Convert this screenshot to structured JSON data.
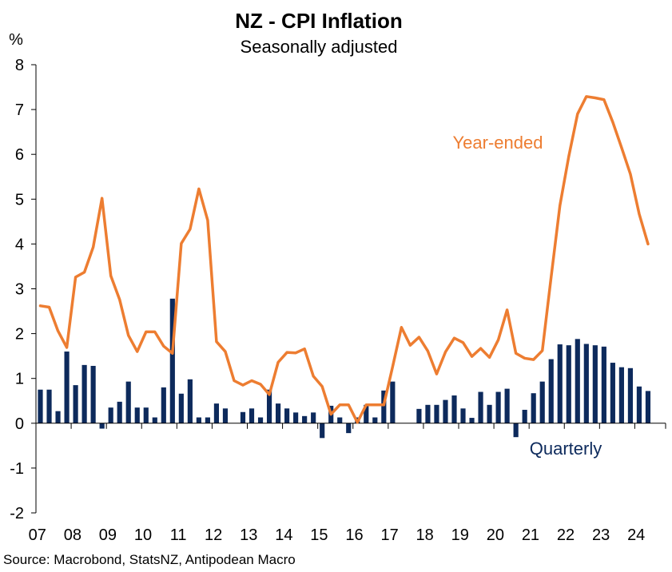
{
  "chart_data": {
    "type": "bar+line",
    "title": "NZ - CPI Inflation",
    "subtitle": "Seasonally adjusted",
    "ylabel": "%",
    "source": "Source: Macrobond, StatsNZ, Antipodean Macro",
    "ylim": [
      -2,
      8
    ],
    "yticks": [
      "-2",
      "-1",
      "0",
      "1",
      "2",
      "3",
      "4",
      "5",
      "6",
      "7",
      "8"
    ],
    "xlim": [
      2007.0,
      2024.875
    ],
    "xticks": [
      {
        "label": "07",
        "year": 2007
      },
      {
        "label": "08",
        "year": 2008
      },
      {
        "label": "09",
        "year": 2009
      },
      {
        "label": "10",
        "year": 2010
      },
      {
        "label": "11",
        "year": 2011
      },
      {
        "label": "12",
        "year": 2012
      },
      {
        "label": "13",
        "year": 2013
      },
      {
        "label": "14",
        "year": 2014
      },
      {
        "label": "15",
        "year": 2015
      },
      {
        "label": "16",
        "year": 2016
      },
      {
        "label": "17",
        "year": 2017
      },
      {
        "label": "18",
        "year": 2018
      },
      {
        "label": "19",
        "year": 2019
      },
      {
        "label": "20",
        "year": 2020
      },
      {
        "label": "21",
        "year": 2021
      },
      {
        "label": "22",
        "year": 2022
      },
      {
        "label": "23",
        "year": 2023
      },
      {
        "label": "24",
        "year": 2024
      }
    ],
    "quarters": [
      "2007Q1",
      "2007Q2",
      "2007Q3",
      "2007Q4",
      "2008Q1",
      "2008Q2",
      "2008Q3",
      "2008Q4",
      "2009Q1",
      "2009Q2",
      "2009Q3",
      "2009Q4",
      "2010Q1",
      "2010Q2",
      "2010Q3",
      "2010Q4",
      "2011Q1",
      "2011Q2",
      "2011Q3",
      "2011Q4",
      "2012Q1",
      "2012Q2",
      "2012Q3",
      "2012Q4",
      "2013Q1",
      "2013Q2",
      "2013Q3",
      "2013Q4",
      "2014Q1",
      "2014Q2",
      "2014Q3",
      "2014Q4",
      "2015Q1",
      "2015Q2",
      "2015Q3",
      "2015Q4",
      "2016Q1",
      "2016Q2",
      "2016Q3",
      "2016Q4",
      "2017Q1",
      "2017Q2",
      "2017Q3",
      "2017Q4",
      "2018Q1",
      "2018Q2",
      "2018Q3",
      "2018Q4",
      "2019Q1",
      "2019Q2",
      "2019Q3",
      "2019Q4",
      "2020Q1",
      "2020Q2",
      "2020Q3",
      "2020Q4",
      "2021Q1",
      "2021Q2",
      "2021Q3",
      "2021Q4",
      "2022Q1",
      "2022Q2",
      "2022Q3",
      "2022Q4",
      "2023Q1",
      "2023Q2",
      "2023Q3",
      "2023Q4",
      "2024Q1",
      "2024Q2"
    ],
    "series": [
      {
        "name": "Quarterly",
        "kind": "bar",
        "color": "#0d2a5c",
        "values": [
          0.75,
          0.75,
          0.27,
          1.6,
          0.85,
          1.3,
          1.28,
          -0.12,
          0.35,
          0.48,
          0.93,
          0.35,
          0.35,
          0.13,
          0.8,
          2.78,
          0.66,
          0.98,
          0.13,
          0.13,
          0.44,
          0.33,
          0.0,
          0.25,
          0.33,
          0.13,
          0.75,
          0.44,
          0.33,
          0.24,
          0.16,
          0.24,
          -0.33,
          0.39,
          0.13,
          -0.22,
          0.13,
          0.41,
          0.13,
          0.73,
          0.93,
          0.0,
          0.0,
          0.32,
          0.41,
          0.41,
          0.52,
          0.62,
          0.33,
          0.12,
          0.7,
          0.41,
          0.7,
          0.77,
          -0.31,
          0.3,
          0.67,
          0.93,
          1.43,
          1.76,
          1.74,
          1.88,
          1.77,
          1.74,
          1.71,
          1.35,
          1.25,
          1.23,
          0.82,
          0.72
        ]
      },
      {
        "name": "Year-ended",
        "kind": "line",
        "color": "#ed7d31",
        "values": [
          2.62,
          2.59,
          2.06,
          1.69,
          3.26,
          3.37,
          3.93,
          5.02,
          3.29,
          2.76,
          1.96,
          1.6,
          2.04,
          2.04,
          1.72,
          1.56,
          4.01,
          4.33,
          5.23,
          4.53,
          1.82,
          1.6,
          0.95,
          0.85,
          0.95,
          0.87,
          0.64,
          1.36,
          1.58,
          1.57,
          1.66,
          1.05,
          0.82,
          0.2,
          0.41,
          0.41,
          0.02,
          0.41,
          0.41,
          0.41,
          1.26,
          2.14,
          1.74,
          1.92,
          1.61,
          1.1,
          1.59,
          1.9,
          1.8,
          1.49,
          1.67,
          1.47,
          1.86,
          2.53,
          1.56,
          1.45,
          1.42,
          1.62,
          3.26,
          4.86,
          5.95,
          6.9,
          7.29,
          7.26,
          7.22,
          6.72,
          6.15,
          5.56,
          4.67,
          4.0
        ]
      }
    ],
    "annotations": [
      {
        "text": "Year-ended",
        "series": "Year-ended",
        "color": "#ed7d31"
      },
      {
        "text": "Quarterly",
        "series": "Quarterly",
        "color": "#0d2a5c"
      }
    ],
    "grid": false,
    "legend": "none"
  }
}
